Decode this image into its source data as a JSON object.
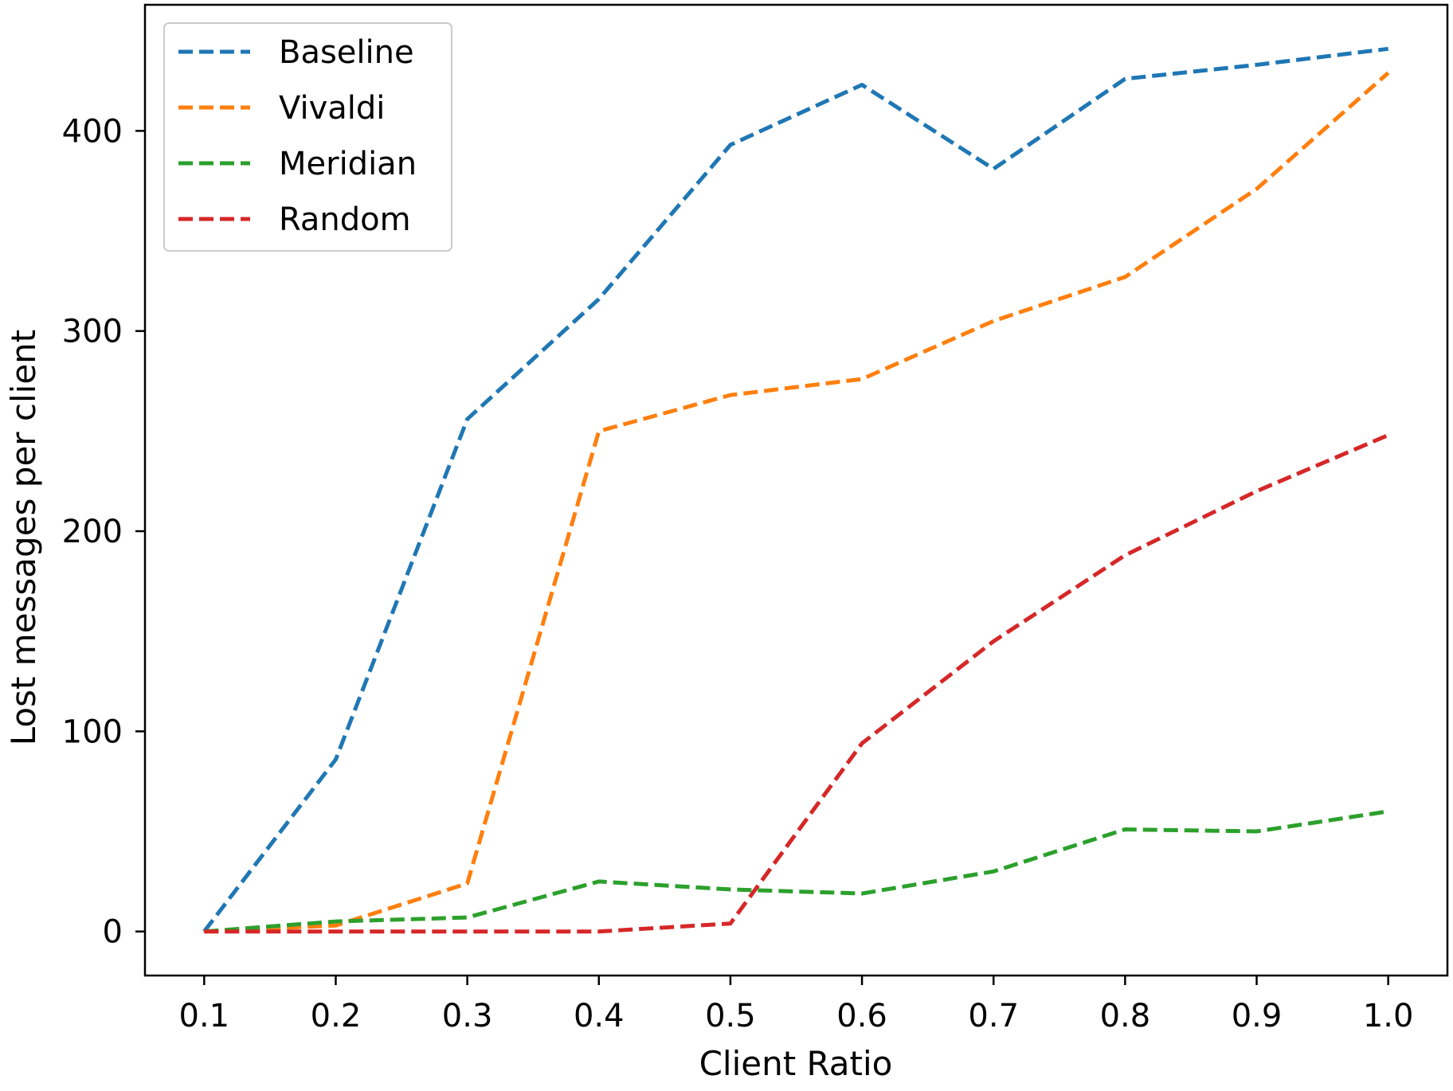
{
  "chart_data": {
    "type": "line",
    "title": "",
    "xlabel": "Client Ratio",
    "ylabel": "Lost messages per client",
    "x": [
      0.1,
      0.2,
      0.3,
      0.4,
      0.5,
      0.6,
      0.7,
      0.8,
      0.9,
      1.0
    ],
    "x_tick_labels": [
      "0.1",
      "0.2",
      "0.3",
      "0.4",
      "0.5",
      "0.6",
      "0.7",
      "0.8",
      "0.9",
      "1.0"
    ],
    "y_ticks": [
      0,
      100,
      200,
      300,
      400
    ],
    "y_tick_labels": [
      "0",
      "100",
      "200",
      "300",
      "400"
    ],
    "xlim": [
      0.055,
      1.045
    ],
    "ylim": [
      -22,
      463
    ],
    "grid": false,
    "legend_position": "upper-left",
    "line_style": "dashed",
    "series": [
      {
        "name": "Baseline",
        "color": "#1f77b4",
        "values": [
          0,
          86,
          256,
          316,
          393,
          423,
          381,
          426,
          433,
          441
        ]
      },
      {
        "name": "Vivaldi",
        "color": "#ff7f0e",
        "values": [
          0,
          3,
          24,
          250,
          268,
          276,
          305,
          327,
          371,
          429
        ]
      },
      {
        "name": "Meridian",
        "color": "#2ca02c",
        "values": [
          0,
          5,
          7,
          25,
          21,
          19,
          30,
          51,
          50,
          60
        ]
      },
      {
        "name": "Random",
        "color": "#d62728",
        "values": [
          0,
          0,
          0,
          0,
          4,
          94,
          145,
          188,
          220,
          248
        ]
      }
    ]
  }
}
